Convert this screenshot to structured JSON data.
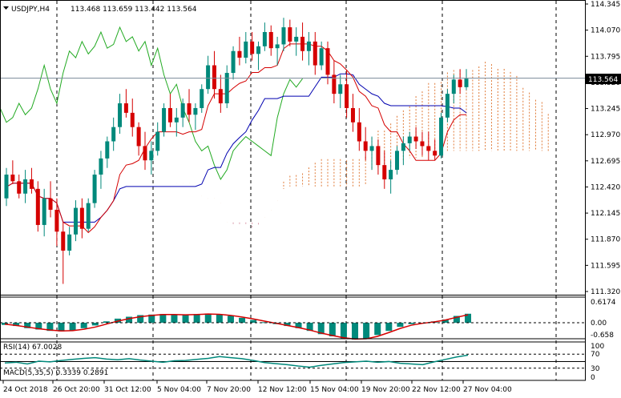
{
  "header": {
    "symbol": "USDJPY,H4",
    "ohlc": "113.468 113.659 113.442 113.564"
  },
  "price_axis": {
    "ticks": [
      "114.345",
      "114.070",
      "113.795",
      "113.520",
      "113.245",
      "112.970",
      "112.695",
      "112.420",
      "112.145",
      "111.870",
      "111.595",
      "111.320"
    ],
    "current_price": "113.564"
  },
  "macd": {
    "label": "MACD(5,35,5) 0.3339 0.2891",
    "ticks": [
      "0.6174",
      "0.00",
      "-0.658"
    ]
  },
  "rsi": {
    "label": "RSI(14) 67.0028",
    "ticks": [
      "100",
      "70",
      "30",
      "0"
    ]
  },
  "time_axis": [
    "24 Oct 2018",
    "26 Oct 20:00",
    "31 Oct 12:00",
    "5 Nov 04:00",
    "7 Nov 20:00",
    "12 Nov 12:00",
    "15 Nov 04:00",
    "19 Nov 20:00",
    "22 Nov 12:00",
    "27 Nov 04:00"
  ],
  "colors": {
    "bull": "#00897b",
    "bear": "#d50000",
    "tenkan": "#d50000",
    "kijun": "#0000b0",
    "chikou": "#22aa22",
    "cloud_up": "#e07b39",
    "cloud_down": "#d99aaa",
    "macd_hist": "#00897b",
    "macd_signal": "#d50000",
    "rsi_line": "#00897b",
    "price_tag_bg": "#000000"
  },
  "chart_data": {
    "type": "candlestick",
    "symbol": "USDJPY",
    "timeframe": "H4",
    "ylim": [
      111.32,
      114.345
    ],
    "ohlc": [
      [
        112.3,
        112.62,
        112.22,
        112.55
      ],
      [
        112.55,
        112.7,
        112.45,
        112.48
      ],
      [
        112.48,
        112.55,
        112.3,
        112.35
      ],
      [
        112.35,
        112.6,
        112.25,
        112.5
      ],
      [
        112.5,
        112.62,
        112.35,
        112.4
      ],
      [
        112.4,
        112.48,
        111.95,
        112.02
      ],
      [
        112.02,
        112.4,
        111.9,
        112.3
      ],
      [
        112.3,
        112.48,
        112.1,
        112.18
      ],
      [
        112.18,
        112.3,
        111.8,
        111.95
      ],
      [
        111.95,
        112.05,
        111.4,
        111.75
      ],
      [
        111.75,
        112.0,
        111.7,
        111.92
      ],
      [
        111.92,
        112.28,
        111.85,
        112.2
      ],
      [
        112.2,
        112.3,
        111.88,
        111.98
      ],
      [
        111.98,
        112.3,
        111.95,
        112.25
      ],
      [
        112.25,
        112.6,
        112.2,
        112.55
      ],
      [
        112.55,
        112.8,
        112.4,
        112.72
      ],
      [
        112.72,
        112.95,
        112.62,
        112.9
      ],
      [
        112.9,
        113.15,
        112.8,
        113.05
      ],
      [
        113.05,
        113.4,
        112.98,
        113.3
      ],
      [
        113.3,
        113.45,
        113.15,
        113.2
      ],
      [
        113.2,
        113.35,
        112.95,
        113.05
      ],
      [
        113.05,
        113.1,
        112.75,
        112.85
      ],
      [
        112.85,
        113.0,
        112.6,
        112.7
      ],
      [
        112.7,
        112.9,
        112.55,
        112.8
      ],
      [
        112.8,
        113.1,
        112.75,
        113.0
      ],
      [
        113.0,
        113.3,
        112.95,
        113.25
      ],
      [
        113.25,
        113.4,
        113.05,
        113.1
      ],
      [
        113.1,
        113.25,
        112.95,
        113.15
      ],
      [
        113.15,
        113.35,
        113.05,
        113.3
      ],
      [
        113.3,
        113.45,
        113.1,
        113.18
      ],
      [
        113.18,
        113.3,
        113.02,
        113.25
      ],
      [
        113.25,
        113.5,
        113.2,
        113.45
      ],
      [
        113.45,
        113.8,
        113.4,
        113.7
      ],
      [
        113.7,
        113.85,
        113.35,
        113.45
      ],
      [
        113.45,
        113.6,
        113.2,
        113.3
      ],
      [
        113.3,
        113.7,
        113.25,
        113.62
      ],
      [
        113.62,
        113.9,
        113.55,
        113.85
      ],
      [
        113.85,
        114.0,
        113.7,
        113.78
      ],
      [
        113.78,
        114.05,
        113.72,
        113.95
      ],
      [
        113.95,
        114.05,
        113.75,
        113.82
      ],
      [
        113.82,
        113.95,
        113.65,
        113.9
      ],
      [
        113.9,
        114.15,
        113.85,
        114.05
      ],
      [
        114.05,
        114.12,
        113.8,
        113.88
      ],
      [
        113.88,
        114.0,
        113.7,
        113.92
      ],
      [
        113.92,
        114.2,
        113.85,
        114.1
      ],
      [
        114.1,
        114.18,
        113.9,
        113.95
      ],
      [
        113.95,
        114.1,
        113.8,
        114.0
      ],
      [
        114.0,
        114.15,
        113.75,
        113.85
      ],
      [
        113.85,
        114.05,
        113.7,
        113.95
      ],
      [
        113.95,
        114.05,
        113.6,
        113.7
      ],
      [
        113.7,
        113.95,
        113.65,
        113.88
      ],
      [
        113.88,
        113.95,
        113.5,
        113.6
      ],
      [
        113.6,
        113.75,
        113.3,
        113.4
      ],
      [
        113.4,
        113.6,
        113.25,
        113.5
      ],
      [
        113.5,
        113.65,
        113.15,
        113.25
      ],
      [
        113.25,
        113.4,
        113.0,
        113.1
      ],
      [
        113.1,
        113.25,
        112.8,
        112.9
      ],
      [
        112.9,
        113.05,
        112.7,
        112.8
      ],
      [
        112.8,
        112.95,
        112.6,
        112.85
      ],
      [
        112.85,
        112.92,
        112.55,
        112.65
      ],
      [
        112.65,
        112.8,
        112.4,
        112.5
      ],
      [
        112.5,
        112.7,
        112.35,
        112.6
      ],
      [
        112.6,
        112.85,
        112.55,
        112.8
      ],
      [
        112.8,
        112.95,
        112.65,
        112.88
      ],
      [
        112.88,
        113.0,
        112.8,
        112.95
      ],
      [
        112.95,
        113.05,
        112.82,
        112.9
      ],
      [
        112.9,
        113.0,
        112.75,
        112.85
      ],
      [
        112.85,
        113.0,
        112.7,
        112.8
      ],
      [
        112.8,
        112.92,
        112.7,
        112.75
      ],
      [
        112.75,
        113.2,
        112.72,
        113.15
      ],
      [
        113.15,
        113.45,
        113.1,
        113.4
      ],
      [
        113.4,
        113.6,
        113.3,
        113.55
      ],
      [
        113.55,
        113.66,
        113.4,
        113.47
      ],
      [
        113.47,
        113.66,
        113.44,
        113.56
      ]
    ],
    "macd": {
      "histogram": [
        -0.08,
        -0.12,
        -0.2,
        -0.25,
        -0.3,
        -0.32,
        -0.28,
        -0.2,
        -0.1,
        0.05,
        0.15,
        0.22,
        0.28,
        0.3,
        0.32,
        0.3,
        0.28,
        0.32,
        0.34,
        0.3,
        0.25,
        0.18,
        0.1,
        0.02,
        -0.05,
        -0.12,
        -0.2,
        -0.3,
        -0.42,
        -0.5,
        -0.58,
        -0.62,
        -0.58,
        -0.45,
        -0.3,
        -0.15,
        -0.05,
        0.0,
        0.05,
        0.12,
        0.25,
        0.33
      ],
      "signal": [
        -0.05,
        -0.1,
        -0.16,
        -0.22,
        -0.27,
        -0.3,
        -0.29,
        -0.24,
        -0.16,
        -0.05,
        0.06,
        0.15,
        0.22,
        0.27,
        0.3,
        0.3,
        0.29,
        0.3,
        0.32,
        0.31,
        0.27,
        0.21,
        0.14,
        0.06,
        -0.02,
        -0.1,
        -0.18,
        -0.27,
        -0.38,
        -0.47,
        -0.55,
        -0.6,
        -0.59,
        -0.5,
        -0.36,
        -0.21,
        -0.09,
        -0.02,
        0.03,
        0.1,
        0.2,
        0.29
      ]
    },
    "rsi": {
      "values": [
        45,
        47,
        42,
        50,
        48,
        52,
        55,
        58,
        60,
        56,
        54,
        57,
        53,
        50,
        47,
        51,
        52,
        55,
        58,
        63,
        60,
        57,
        52,
        46,
        43,
        40,
        36,
        33,
        38,
        42,
        46,
        48,
        50,
        47,
        49,
        44,
        42,
        40,
        48,
        55,
        62,
        67
      ],
      "levels": [
        70,
        30
      ]
    }
  }
}
